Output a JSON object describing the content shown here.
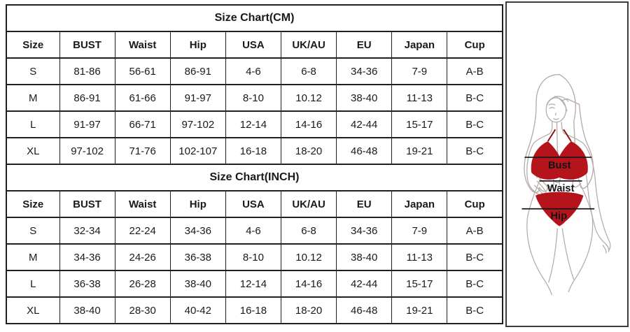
{
  "chart_data": [
    {
      "type": "table",
      "title": "Size Chart(CM)",
      "columns": [
        "Size",
        "BUST",
        "Waist",
        "Hip",
        "USA",
        "UK/AU",
        "EU",
        "Japan",
        "Cup"
      ],
      "rows": [
        [
          "S",
          "81-86",
          "56-61",
          "86-91",
          "4-6",
          "6-8",
          "34-36",
          "7-9",
          "A-B"
        ],
        [
          "M",
          "86-91",
          "61-66",
          "91-97",
          "8-10",
          "10.12",
          "38-40",
          "11-13",
          "B-C"
        ],
        [
          "L",
          "91-97",
          "66-71",
          "97-102",
          "12-14",
          "14-16",
          "42-44",
          "15-17",
          "B-C"
        ],
        [
          "XL",
          "97-102",
          "71-76",
          "102-107",
          "16-18",
          "18-20",
          "46-48",
          "19-21",
          "B-C"
        ]
      ]
    },
    {
      "type": "table",
      "title": "Size Chart(INCH)",
      "columns": [
        "Size",
        "BUST",
        "Waist",
        "Hip",
        "USA",
        "UK/AU",
        "EU",
        "Japan",
        "Cup"
      ],
      "rows": [
        [
          "S",
          "32-34",
          "22-24",
          "34-36",
          "4-6",
          "6-8",
          "34-36",
          "7-9",
          "A-B"
        ],
        [
          "M",
          "34-36",
          "24-26",
          "36-38",
          "8-10",
          "10.12",
          "38-40",
          "11-13",
          "B-C"
        ],
        [
          "L",
          "36-38",
          "26-28",
          "38-40",
          "12-14",
          "14-16",
          "42-44",
          "15-17",
          "B-C"
        ],
        [
          "XL",
          "38-40",
          "28-30",
          "40-42",
          "16-18",
          "18-20",
          "46-48",
          "19-21",
          "B-C"
        ]
      ]
    }
  ],
  "figure": {
    "labels": {
      "bust": "Bust",
      "waist": "Waist",
      "hip": "Hip"
    },
    "colors": {
      "bikini": "#b5141c",
      "bikini_dark": "#8f0e15",
      "outline": "#b6acac",
      "line": "#161616"
    }
  }
}
